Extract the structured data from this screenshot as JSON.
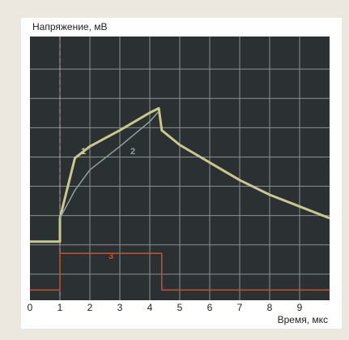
{
  "chart_data": {
    "type": "line",
    "y_label": "Напряжение, мВ",
    "x_label": "Время, мкс",
    "xlim": [
      0,
      10
    ],
    "xticks": [
      0,
      1,
      2,
      3,
      4,
      5,
      6,
      7,
      8,
      9
    ],
    "ylim": [
      0,
      9
    ],
    "grid": true,
    "series": [
      {
        "name": "1",
        "color": "#c9c98c",
        "x": [
          0,
          1,
          1,
          1.5,
          2,
          3,
          4,
          4.3,
          4.4,
          5,
          6,
          7,
          8,
          9,
          10
        ],
        "values": [
          2.0,
          2.0,
          2.8,
          4.85,
          5.25,
          5.8,
          6.4,
          6.55,
          5.8,
          5.3,
          4.7,
          4.1,
          3.6,
          3.2,
          2.8
        ]
      },
      {
        "name": "2",
        "color": "#8fa39c",
        "x": [
          1,
          1.5,
          2,
          3,
          4,
          4.3
        ],
        "values": [
          2.8,
          3.75,
          4.45,
          5.25,
          6.1,
          6.45
        ]
      },
      {
        "name": "3",
        "color": "#c8502e",
        "x": [
          0,
          1,
          1,
          4.4,
          4.4,
          10
        ],
        "values": [
          0.35,
          0.35,
          1.6,
          1.6,
          0.35,
          0.35
        ]
      }
    ]
  }
}
